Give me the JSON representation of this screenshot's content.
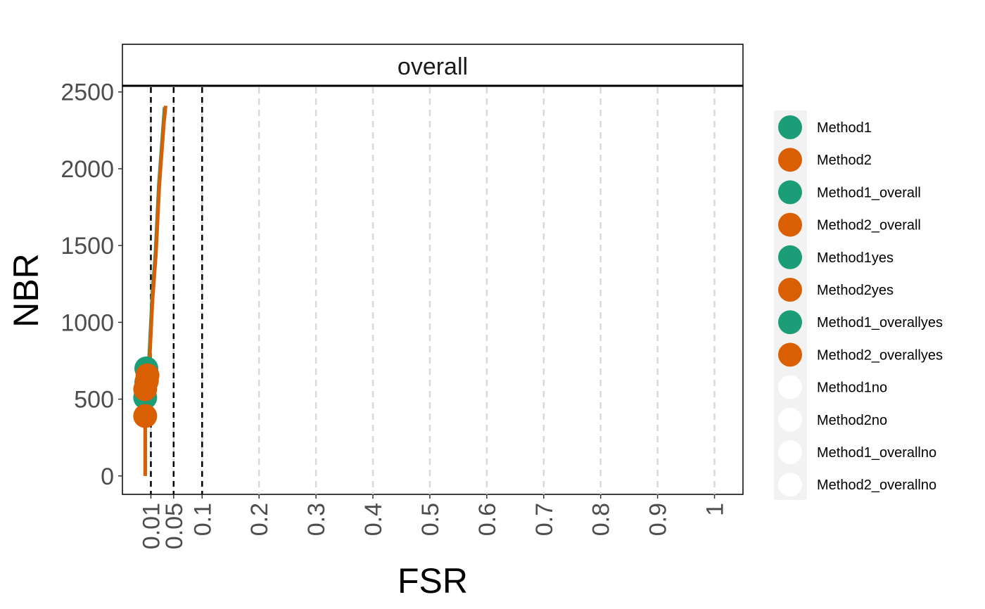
{
  "chart_data": {
    "type": "line",
    "facet_label": "overall",
    "xlabel": "FSR",
    "ylabel": "NBR",
    "x_ticks": [
      0.01,
      0.05,
      0.1,
      0.2,
      0.3,
      0.4,
      0.5,
      0.6,
      0.7,
      0.8,
      0.9,
      1
    ],
    "x_tick_labels": [
      "0.01",
      "0.05",
      "0.1",
      "0.2",
      "0.3",
      "0.4",
      "0.5",
      "0.6",
      "0.7",
      "0.8",
      "0.9",
      "1"
    ],
    "y_ticks": [
      0,
      500,
      1000,
      1500,
      2000,
      2500
    ],
    "y_tick_labels": [
      "0",
      "500",
      "1000",
      "1500",
      "2000",
      "2500"
    ],
    "xlim": [
      -0.04,
      1.05
    ],
    "ylim": [
      -120,
      2540
    ],
    "grid": "vertical dashed at x ticks",
    "threshold_lines_x": [
      0.01,
      0.05,
      0.1
    ],
    "colors": {
      "method1": "#1b9e77",
      "method2": "#d95f02",
      "grid": "#d9d9d9",
      "legend_bg": "#f2f2f2"
    },
    "series": [
      {
        "name": "Method1",
        "color": "#1b9e77",
        "x": [
          0.0,
          0.0,
          0.003,
          0.006,
          0.008,
          0.01,
          0.012,
          0.015,
          0.018,
          0.02,
          0.022,
          0.024,
          0.026,
          0.028,
          0.03,
          0.032,
          0.034
        ],
        "y": [
          0,
          380,
          560,
          720,
          850,
          1000,
          1150,
          1300,
          1450,
          1600,
          1750,
          1900,
          2000,
          2100,
          2200,
          2300,
          2400
        ]
      },
      {
        "name": "Method2",
        "color": "#d95f02",
        "x": [
          0.0,
          0.0,
          0.004,
          0.007,
          0.009,
          0.011,
          0.013,
          0.016,
          0.019,
          0.021,
          0.023,
          0.025,
          0.027,
          0.029,
          0.031,
          0.033,
          0.036
        ],
        "y": [
          0,
          390,
          560,
          700,
          850,
          1000,
          1150,
          1300,
          1450,
          1600,
          1750,
          1900,
          2000,
          2100,
          2200,
          2300,
          2410
        ]
      }
    ],
    "points": [
      {
        "series": "Method1",
        "x": 0.0,
        "y": 510,
        "color": "#1b9e77"
      },
      {
        "series": "Method1",
        "x": 0.002,
        "y": 610,
        "color": "#1b9e77"
      },
      {
        "series": "Method1",
        "x": 0.002,
        "y": 700,
        "color": "#1b9e77"
      },
      {
        "series": "Method2",
        "x": 0.0,
        "y": 390,
        "color": "#d95f02"
      },
      {
        "series": "Method2",
        "x": 0.0,
        "y": 565,
        "color": "#d95f02"
      },
      {
        "series": "Method2",
        "x": 0.003,
        "y": 620,
        "color": "#d95f02"
      },
      {
        "series": "Method2",
        "x": 0.004,
        "y": 655,
        "color": "#d95f02"
      }
    ],
    "legend": {
      "placement": "right",
      "entries": [
        {
          "label": "Method1",
          "color": "#1b9e77"
        },
        {
          "label": "Method2",
          "color": "#d95f02"
        },
        {
          "label": "Method1_overall",
          "color": "#1b9e77"
        },
        {
          "label": "Method2_overall",
          "color": "#d95f02"
        },
        {
          "label": "Method1yes",
          "color": "#1b9e77"
        },
        {
          "label": "Method2yes",
          "color": "#d95f02"
        },
        {
          "label": "Method1_overallyes",
          "color": "#1b9e77"
        },
        {
          "label": "Method2_overallyes",
          "color": "#d95f02"
        },
        {
          "label": "Method1no",
          "color": "#ffffff"
        },
        {
          "label": "Method2no",
          "color": "#ffffff"
        },
        {
          "label": "Method1_overallno",
          "color": "#ffffff"
        },
        {
          "label": "Method2_overallno",
          "color": "#ffffff"
        }
      ]
    }
  }
}
